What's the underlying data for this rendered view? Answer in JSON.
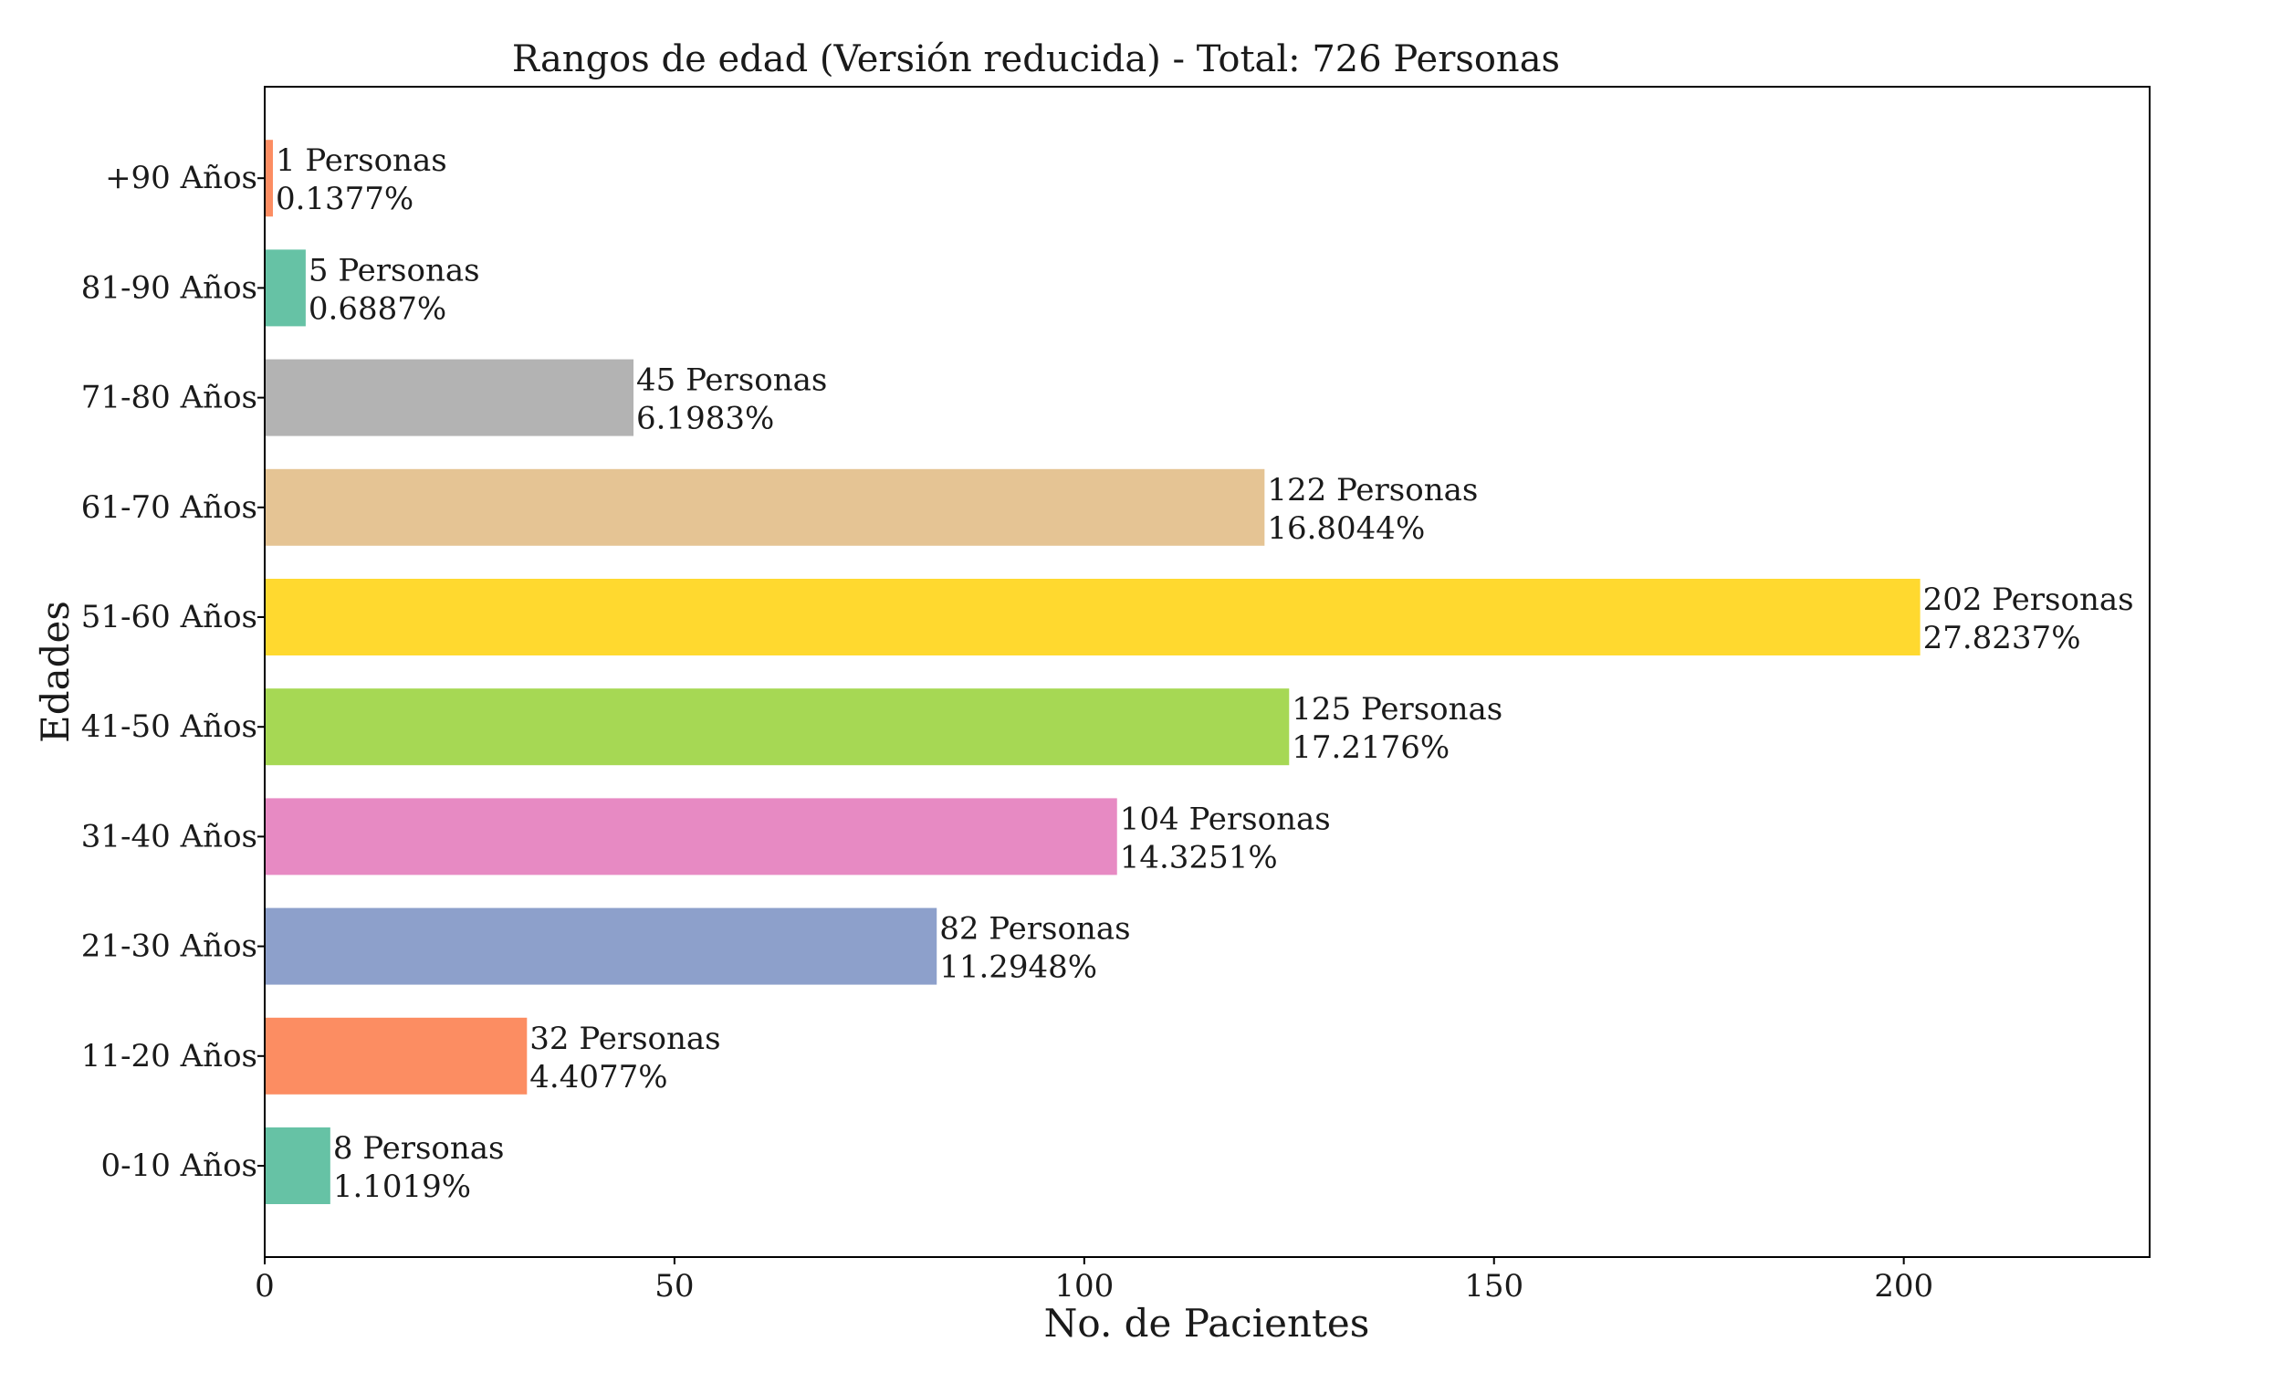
{
  "chart_data": {
    "type": "bar",
    "orientation": "horizontal",
    "title": "Rangos de edad (Versión reducida) - Total: 726 Personas",
    "xlabel": "No. de Pacientes",
    "ylabel": "Edades",
    "xlim": [
      0,
      230
    ],
    "xticks": [
      0,
      50,
      100,
      150,
      200
    ],
    "grid": false,
    "categories": [
      "0-10 Años",
      "11-20 Años",
      "21-30 Años",
      "31-40 Años",
      "41-50 Años",
      "51-60 Años",
      "61-70 Años",
      "71-80 Años",
      "81-90 Años",
      "+90 Años"
    ],
    "values": [
      8,
      32,
      82,
      104,
      125,
      202,
      122,
      45,
      5,
      1
    ],
    "count_labels": [
      "8 Personas",
      "32 Personas",
      "82 Personas",
      "104 Personas",
      "125 Personas",
      "202 Personas",
      "122 Personas",
      "45 Personas",
      "5 Personas",
      "1 Personas"
    ],
    "percent_labels": [
      "1.1019%",
      "4.4077%",
      "11.2948%",
      "14.3251%",
      "17.2176%",
      "27.8237%",
      "16.8044%",
      "6.1983%",
      "0.6887%",
      "0.1377%"
    ],
    "colors": [
      "#66c2a5",
      "#fc8d62",
      "#8da0cb",
      "#e78ac3",
      "#a6d854",
      "#ffd92f",
      "#e5c494",
      "#b3b3b3",
      "#66c2a5",
      "#fc8d62"
    ]
  }
}
